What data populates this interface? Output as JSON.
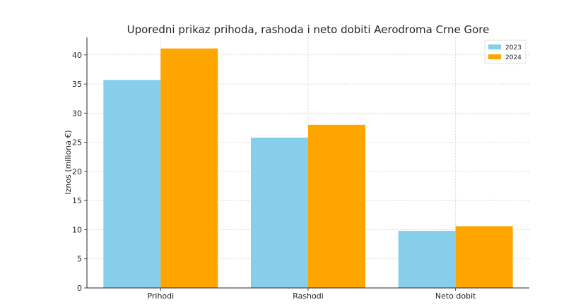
{
  "chart_data": {
    "type": "bar",
    "title": "Uporedni prikaz prihoda, rashoda i neto dobiti Aerodroma Crne Gore",
    "xlabel": "",
    "ylabel": "Iznos (miliona €)",
    "categories": [
      "Prihodi",
      "Rashodi",
      "Neto dobit"
    ],
    "series": [
      {
        "name": "2023",
        "values": [
          35.7,
          25.8,
          9.8
        ],
        "color": "#87CEEB"
      },
      {
        "name": "2024",
        "values": [
          41.1,
          28.0,
          10.6
        ],
        "color": "#FFA500"
      }
    ],
    "ylim": [
      0,
      43
    ],
    "yticks": [
      0,
      5,
      10,
      15,
      20,
      25,
      30,
      35,
      40
    ],
    "grid": true,
    "legend_position": "top-right"
  }
}
